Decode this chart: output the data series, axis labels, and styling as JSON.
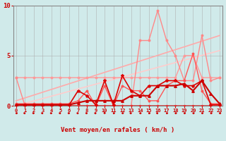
{
  "background_color": "#d0eaea",
  "x_values": [
    0,
    1,
    2,
    3,
    4,
    5,
    6,
    7,
    8,
    9,
    10,
    11,
    12,
    13,
    14,
    15,
    16,
    17,
    18,
    19,
    20,
    21,
    22,
    23
  ],
  "xlabel": "Vent moyen/en rafales ( km/h )",
  "ylim": [
    0,
    10
  ],
  "xlim": [
    -0.3,
    23.3
  ],
  "yticks": [
    0,
    5,
    10
  ],
  "line_flat_high": {
    "y": [
      2.8,
      2.8,
      2.8,
      2.8,
      2.8,
      2.8,
      2.8,
      2.8,
      2.8,
      2.8,
      2.8,
      2.8,
      2.8,
      2.8,
      2.8,
      2.8,
      2.8,
      2.8,
      2.8,
      5.0,
      5.0,
      2.8,
      2.8,
      2.8
    ],
    "color": "#ff9999",
    "lw": 1.0,
    "marker": "o",
    "ms": 1.8
  },
  "line_trend_upper": {
    "x": [
      0,
      23
    ],
    "y": [
      0.5,
      7.0
    ],
    "color": "#ffaaaa",
    "lw": 1.2
  },
  "line_trend_lower": {
    "x": [
      0,
      23
    ],
    "y": [
      0.0,
      5.5
    ],
    "color": "#ffcccc",
    "lw": 1.2
  },
  "line_gust": {
    "y": [
      2.8,
      0.0,
      0.0,
      0.0,
      0.0,
      0.0,
      0.0,
      0.0,
      0.0,
      0.0,
      0.0,
      0.0,
      0.0,
      0.0,
      6.5,
      6.5,
      9.5,
      6.5,
      5.0,
      2.5,
      2.5,
      7.0,
      2.5,
      2.8
    ],
    "color": "#ff8888",
    "lw": 1.0,
    "marker": "o",
    "ms": 1.8
  },
  "line_med": {
    "y": [
      0.2,
      0.2,
      0.2,
      0.2,
      0.2,
      0.2,
      0.2,
      0.5,
      1.5,
      0.0,
      2.0,
      0.0,
      2.0,
      1.5,
      1.5,
      0.5,
      0.5,
      2.0,
      2.5,
      2.5,
      5.2,
      1.5,
      0.2,
      0.2
    ],
    "color": "#ff5555",
    "lw": 1.0,
    "marker": "o",
    "ms": 1.8
  },
  "line_mean": {
    "y": [
      0.1,
      0.1,
      0.1,
      0.1,
      0.1,
      0.1,
      0.1,
      0.3,
      0.5,
      0.5,
      0.5,
      0.5,
      0.5,
      1.0,
      1.0,
      1.0,
      2.0,
      2.0,
      2.0,
      2.2,
      1.5,
      2.5,
      1.2,
      0.2
    ],
    "color": "#cc0000",
    "lw": 1.5,
    "marker": "^",
    "ms": 2.5
  },
  "line_zero": {
    "y": [
      0.0,
      0.0,
      0.0,
      0.0,
      0.0,
      0.0,
      0.0,
      0.0,
      0.0,
      0.0,
      0.0,
      0.0,
      0.0,
      0.0,
      0.0,
      0.0,
      0.0,
      0.0,
      0.0,
      0.0,
      0.0,
      0.0,
      0.0,
      0.0
    ],
    "color": "#dd3333",
    "lw": 1.2,
    "marker": "o",
    "ms": 1.5
  },
  "line_spike": {
    "y": [
      0.1,
      0.1,
      0.1,
      0.1,
      0.1,
      0.1,
      0.1,
      1.5,
      1.0,
      0.1,
      2.5,
      0.1,
      3.0,
      1.5,
      1.0,
      2.0,
      2.0,
      2.5,
      2.5,
      2.0,
      2.0,
      2.5,
      0.1,
      0.1
    ],
    "color": "#dd0000",
    "lw": 1.2,
    "marker": "*",
    "ms": 3.0
  },
  "arrows": {
    "angles_deg": [
      45,
      315,
      315,
      315,
      315,
      315,
      315,
      315,
      315,
      315,
      0,
      45,
      45,
      315,
      45,
      45,
      315,
      45,
      45,
      45,
      45,
      45,
      45,
      45
    ],
    "color": "#cc0000"
  }
}
